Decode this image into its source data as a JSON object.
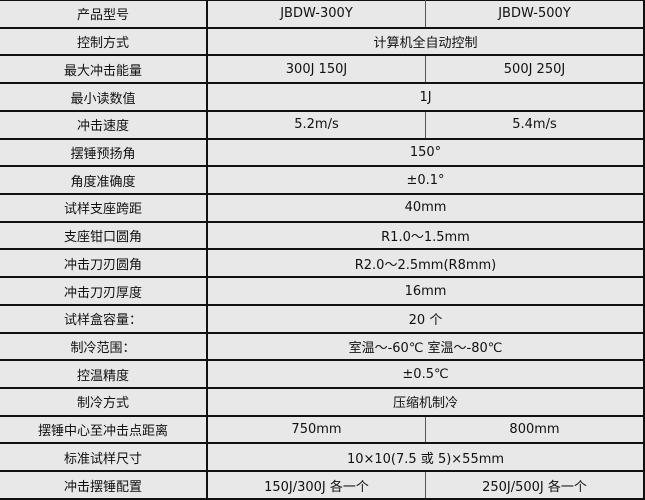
{
  "rows": [
    {
      "label": "产品型号",
      "values": [
        "JBDW-300Y",
        "JBDW-500Y"
      ]
    },
    {
      "label": "控制方式",
      "values": [
        "计算机全自动控制"
      ]
    },
    {
      "label": "最大冲击能量",
      "values": [
        "300J 150J",
        "500J 250J"
      ]
    },
    {
      "label": "最小读数值",
      "values": [
        "1J"
      ]
    },
    {
      "label": "冲击速度",
      "values": [
        "5.2m/s",
        "5.4m/s"
      ]
    },
    {
      "label": "摆锤预扬角",
      "values": [
        "150°"
      ]
    },
    {
      "label": "角度准确度",
      "values": [
        "±0.1°"
      ]
    },
    {
      "label": "试样支座跨距",
      "values": [
        "40mm"
      ]
    },
    {
      "label": "支座钳口圆角",
      "values": [
        "R1.0～1.5mm"
      ]
    },
    {
      "label": "冲击刀刃圆角",
      "values": [
        "R2.0～2.5mm(R8mm)"
      ]
    },
    {
      "label": "冲击刀刃厚度",
      "values": [
        "16mm"
      ]
    },
    {
      "label": "试样盒容量：",
      "values": [
        "20 个"
      ]
    },
    {
      "label": "制冷范围：",
      "values": [
        "室温～-60℃  室温～-80℃"
      ]
    },
    {
      "label": "控温精度",
      "values": [
        "±0.5℃"
      ]
    },
    {
      "label": "制冷方式",
      "values": [
        "压缩机制冷"
      ]
    },
    {
      "label": "摆锤中心至冲击点距离",
      "values": [
        "750mm",
        "800mm"
      ]
    },
    {
      "label": "标准试样尺寸",
      "values": [
        "10×10(7.5 或 5)×55mm"
      ]
    },
    {
      "label": "冲击摆锤配置",
      "values": [
        "150J/300J 各一个",
        "250J/500J 各一个"
      ]
    }
  ]
}
